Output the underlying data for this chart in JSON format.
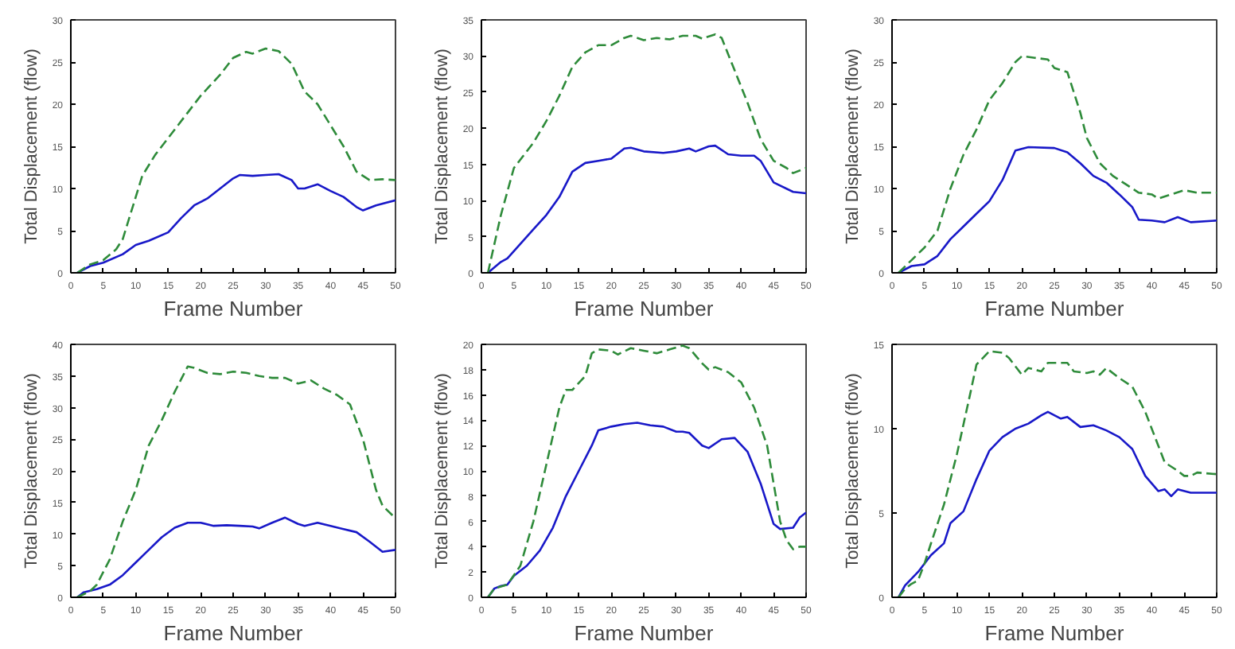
{
  "chart_data": [
    {
      "type": "line",
      "xlabel": "Frame Number",
      "ylabel": "Total Displacement (flow)",
      "xlim": [
        0,
        50
      ],
      "ylim": [
        0,
        30
      ],
      "xticks": [
        0,
        5,
        10,
        15,
        20,
        25,
        30,
        35,
        40,
        45,
        50
      ],
      "yticks": [
        0,
        5,
        10,
        15,
        20,
        25,
        30
      ],
      "grid": false,
      "series": [
        {
          "color": "#1818c8",
          "line_style": "solid",
          "x": [
            1,
            3,
            5,
            8,
            10,
            12,
            15,
            17,
            19,
            21,
            23,
            25,
            26,
            28,
            30,
            32,
            34,
            35,
            36,
            38,
            40,
            42,
            44,
            45,
            47,
            50
          ],
          "values": [
            0,
            0.8,
            1.2,
            2.2,
            3.3,
            3.8,
            4.8,
            6.5,
            8,
            8.8,
            10,
            11.2,
            11.6,
            11.5,
            11.6,
            11.7,
            11,
            10,
            10,
            10.5,
            9.7,
            9,
            7.8,
            7.4,
            8,
            8.6
          ]
        },
        {
          "color": "#2e8b3a",
          "line_style": "dashed",
          "x": [
            1,
            3,
            5,
            7,
            8,
            10,
            11,
            13,
            15,
            18,
            20,
            23,
            25,
            27,
            28,
            30,
            32,
            34,
            36,
            38,
            40,
            42,
            44,
            45,
            46,
            48,
            50
          ],
          "values": [
            0,
            1,
            1.5,
            2.8,
            4,
            9,
            11.5,
            14,
            16,
            19,
            21,
            23.5,
            25.5,
            26.2,
            26,
            26.6,
            26.3,
            24.8,
            21.5,
            20,
            17.5,
            15,
            12,
            11.5,
            11,
            11.1,
            11
          ]
        }
      ]
    },
    {
      "type": "line",
      "xlabel": "Frame Number",
      "ylabel": "Total Displacement (flow)",
      "xlim": [
        0,
        50
      ],
      "ylim": [
        0,
        35
      ],
      "xticks": [
        0,
        5,
        10,
        15,
        20,
        25,
        30,
        35,
        40,
        45,
        50
      ],
      "yticks": [
        0,
        5,
        10,
        15,
        20,
        25,
        30,
        35
      ],
      "grid": false,
      "series": [
        {
          "color": "#1818c8",
          "line_style": "solid",
          "x": [
            1,
            3,
            4,
            6,
            8,
            10,
            12,
            14,
            16,
            18,
            20,
            22,
            23,
            25,
            28,
            30,
            32,
            33,
            35,
            36,
            38,
            40,
            42,
            43,
            45,
            48,
            50
          ],
          "values": [
            0,
            1.5,
            2,
            4,
            6,
            8,
            10.5,
            14,
            15.2,
            15.5,
            15.8,
            17.2,
            17.3,
            16.8,
            16.6,
            16.8,
            17.2,
            16.8,
            17.5,
            17.6,
            16.4,
            16.2,
            16.2,
            15.5,
            12.5,
            11.2,
            11
          ]
        },
        {
          "color": "#2e8b3a",
          "line_style": "dashed",
          "x": [
            1,
            3,
            5,
            8,
            10,
            12,
            14,
            16,
            18,
            20,
            22,
            23,
            25,
            27,
            29,
            31,
            33,
            34,
            36,
            37,
            39,
            41,
            43,
            45,
            47,
            48,
            50
          ],
          "values": [
            0,
            8,
            14.5,
            18,
            21,
            24.5,
            28.5,
            30.5,
            31.5,
            31.5,
            32.5,
            32.8,
            32.2,
            32.5,
            32.3,
            32.8,
            32.8,
            32.4,
            33,
            32.5,
            28,
            23.5,
            18.5,
            15.5,
            14.5,
            13.8,
            14.5
          ]
        }
      ]
    },
    {
      "type": "line",
      "xlabel": "Frame Number",
      "ylabel": "Total Displacement (flow)",
      "xlim": [
        0,
        50
      ],
      "ylim": [
        0,
        30
      ],
      "xticks": [
        0,
        5,
        10,
        15,
        20,
        25,
        30,
        35,
        40,
        45,
        50
      ],
      "yticks": [
        0,
        5,
        10,
        15,
        20,
        25,
        30
      ],
      "grid": false,
      "series": [
        {
          "color": "#1818c8",
          "line_style": "solid",
          "x": [
            1,
            3,
            5,
            7,
            9,
            11,
            13,
            15,
            17,
            19,
            21,
            25,
            27,
            29,
            31,
            33,
            35,
            37,
            38,
            40,
            42,
            44,
            46,
            50
          ],
          "values": [
            0,
            0.8,
            1,
            2,
            4,
            5.5,
            7,
            8.5,
            11,
            14.5,
            14.9,
            14.8,
            14.3,
            13,
            11.5,
            10.7,
            9.3,
            7.8,
            6.3,
            6.2,
            6,
            6.6,
            6,
            6.2
          ]
        },
        {
          "color": "#2e8b3a",
          "line_style": "dashed",
          "x": [
            1,
            3,
            5,
            7,
            9,
            11,
            13,
            15,
            17,
            19,
            20,
            22,
            24,
            25,
            27,
            29,
            30,
            32,
            34,
            36,
            38,
            40,
            41,
            43,
            45,
            47,
            50
          ],
          "values": [
            0,
            1.5,
            3,
            5,
            10,
            14,
            17,
            20.5,
            22.5,
            25,
            25.7,
            25.5,
            25.3,
            24.3,
            23.8,
            19,
            16,
            13,
            11.5,
            10.5,
            9.5,
            9.3,
            8.8,
            9.3,
            9.8,
            9.5,
            9.5
          ]
        }
      ]
    },
    {
      "type": "line",
      "xlabel": "Frame Number",
      "ylabel": "Total Displacement (flow)",
      "xlim": [
        0,
        50
      ],
      "ylim": [
        0,
        40
      ],
      "xticks": [
        0,
        5,
        10,
        15,
        20,
        25,
        30,
        35,
        40,
        45,
        50
      ],
      "yticks": [
        0,
        5,
        10,
        15,
        20,
        25,
        30,
        35,
        40
      ],
      "grid": false,
      "series": [
        {
          "color": "#1818c8",
          "line_style": "solid",
          "x": [
            1,
            2,
            4,
            6,
            8,
            10,
            12,
            14,
            16,
            18,
            20,
            22,
            24,
            26,
            28,
            29,
            31,
            33,
            35,
            36,
            38,
            40,
            42,
            44,
            46,
            48,
            50
          ],
          "values": [
            0,
            0.8,
            1.3,
            2,
            3.5,
            5.5,
            7.5,
            9.5,
            11,
            11.8,
            11.8,
            11.3,
            11.4,
            11.3,
            11.2,
            10.9,
            11.8,
            12.6,
            11.6,
            11.3,
            11.8,
            11.3,
            10.8,
            10.3,
            8.8,
            7.2,
            7.5
          ]
        },
        {
          "color": "#2e8b3a",
          "line_style": "dashed",
          "x": [
            1,
            3,
            4,
            6,
            8,
            10,
            12,
            14,
            16,
            18,
            19,
            21,
            23,
            25,
            27,
            29,
            31,
            33,
            35,
            37,
            39,
            41,
            43,
            45,
            47,
            48,
            50
          ],
          "values": [
            0,
            1,
            2,
            6,
            12,
            17,
            24,
            28,
            32.5,
            36.5,
            36.3,
            35.5,
            35.3,
            35.7,
            35.5,
            35,
            34.7,
            34.7,
            33.8,
            34.3,
            33,
            32,
            30.5,
            25,
            17,
            14.5,
            12.5
          ]
        }
      ]
    },
    {
      "type": "line",
      "xlabel": "Frame Number",
      "ylabel": "Total Displacement (flow)",
      "xlim": [
        0,
        50
      ],
      "ylim": [
        0,
        20
      ],
      "xticks": [
        0,
        5,
        10,
        15,
        20,
        25,
        30,
        35,
        40,
        45,
        50
      ],
      "yticks": [
        0,
        2,
        4,
        6,
        8,
        10,
        12,
        14,
        16,
        18,
        20
      ],
      "grid": false,
      "series": [
        {
          "color": "#1818c8",
          "line_style": "solid",
          "x": [
            1,
            2,
            3,
            4,
            5,
            7,
            9,
            11,
            13,
            15,
            17,
            18,
            20,
            22,
            24,
            26,
            28,
            30,
            31,
            32,
            34,
            35,
            37,
            39,
            41,
            43,
            45,
            46,
            48,
            49,
            50
          ],
          "values": [
            0,
            0.7,
            0.9,
            1,
            1.7,
            2.5,
            3.7,
            5.5,
            8,
            10,
            12,
            13.2,
            13.5,
            13.7,
            13.8,
            13.6,
            13.5,
            13.1,
            13.1,
            13,
            12,
            11.8,
            12.5,
            12.6,
            11.5,
            9,
            5.8,
            5.4,
            5.5,
            6.3,
            6.7
          ]
        },
        {
          "color": "#2e8b3a",
          "line_style": "dashed",
          "x": [
            1,
            2,
            4,
            6,
            8,
            10,
            12,
            13,
            14,
            16,
            17,
            18,
            20,
            21,
            23,
            25,
            27,
            29,
            31,
            32,
            34,
            35,
            36,
            38,
            40,
            42,
            44,
            45,
            46,
            47,
            48,
            49,
            50
          ],
          "values": [
            0,
            0.7,
            1,
            2.5,
            6,
            10.5,
            15,
            16.4,
            16.4,
            17.5,
            19.3,
            19.6,
            19.5,
            19.2,
            19.7,
            19.5,
            19.3,
            19.6,
            19.9,
            19.7,
            18.5,
            18,
            18.2,
            17.8,
            17,
            15,
            12,
            9,
            6,
            4.5,
            3.8,
            4,
            4
          ]
        }
      ]
    },
    {
      "type": "line",
      "xlabel": "Frame Number",
      "ylabel": "Total Displacement (flow)",
      "xlim": [
        0,
        50
      ],
      "ylim": [
        0,
        15
      ],
      "xticks": [
        0,
        5,
        10,
        15,
        20,
        25,
        30,
        35,
        40,
        45,
        50
      ],
      "yticks": [
        0,
        5,
        10,
        15
      ],
      "grid": false,
      "series": [
        {
          "color": "#1818c8",
          "line_style": "solid",
          "x": [
            1,
            2,
            4,
            6,
            8,
            9,
            11,
            13,
            15,
            17,
            19,
            21,
            23,
            24,
            26,
            27,
            29,
            31,
            33,
            35,
            37,
            39,
            41,
            42,
            43,
            44,
            46,
            50
          ],
          "values": [
            0,
            0.7,
            1.5,
            2.5,
            3.2,
            4.4,
            5.1,
            7,
            8.7,
            9.5,
            10,
            10.3,
            10.8,
            11,
            10.6,
            10.7,
            10.1,
            10.2,
            9.9,
            9.5,
            8.8,
            7.2,
            6.3,
            6.4,
            6,
            6.4,
            6.2,
            6.2
          ]
        },
        {
          "color": "#2e8b3a",
          "line_style": "dashed",
          "x": [
            1,
            2,
            3,
            4,
            5,
            6,
            8,
            10,
            12,
            13,
            15,
            17,
            18,
            20,
            21,
            23,
            24,
            27,
            28,
            30,
            31,
            32,
            33,
            35,
            37,
            39,
            41,
            42,
            44,
            45,
            46,
            47,
            50
          ],
          "values": [
            0,
            0.5,
            0.8,
            1,
            2,
            3.2,
            5.5,
            8.5,
            12,
            13.8,
            14.6,
            14.5,
            14.2,
            13.2,
            13.6,
            13.4,
            13.9,
            13.9,
            13.4,
            13.3,
            13.4,
            13.2,
            13.6,
            13,
            12.5,
            11,
            9,
            8,
            7.5,
            7.2,
            7.2,
            7.4,
            7.3
          ]
        }
      ]
    }
  ]
}
